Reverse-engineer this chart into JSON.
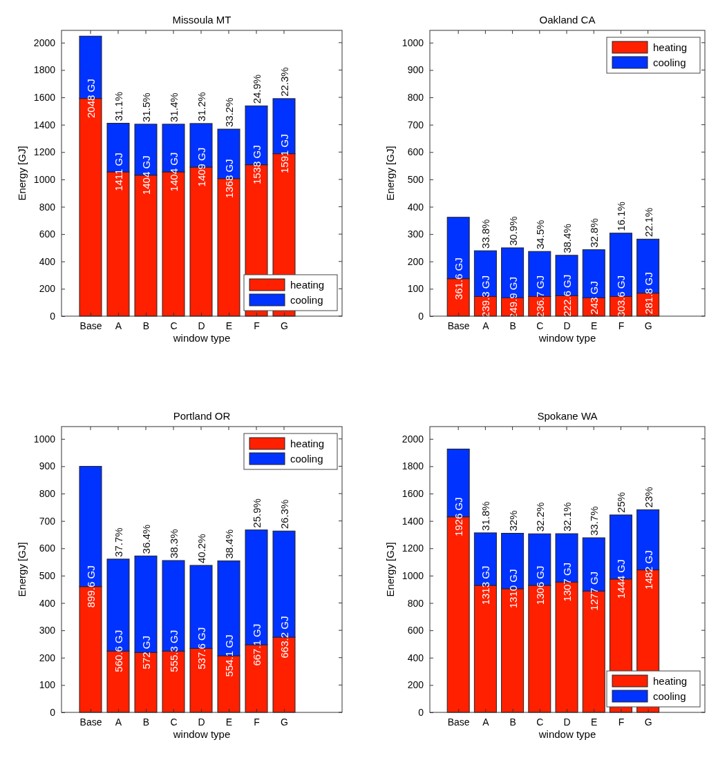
{
  "chart_data": [
    {
      "type": "bar",
      "stacked": true,
      "title": "Missoula MT",
      "xlabel": "window type",
      "ylabel": "Energy [GJ]",
      "categories": [
        "Base",
        "A",
        "B",
        "C",
        "D",
        "E",
        "F",
        "G"
      ],
      "series": [
        {
          "name": "heating",
          "color": "#ff2000",
          "values": [
            1592,
            1055,
            1031,
            1055,
            1090,
            1006,
            1107,
            1188
          ]
        },
        {
          "name": "cooling",
          "color": "#0033ff",
          "values": [
            456,
            356,
            373,
            349,
            319,
            362,
            431,
            403
          ]
        }
      ],
      "totals": [
        "2048 GJ",
        "1411 GJ",
        "1404 GJ",
        "1404 GJ",
        "1409 GJ",
        "1368 GJ",
        "1538 GJ",
        "1591 GJ"
      ],
      "annotations": [
        {
          "text": "31.1%",
          "x": "A",
          "y": 1411
        },
        {
          "text": "31.5%",
          "x": "B",
          "y": 1404
        },
        {
          "text": "31.4%",
          "x": "C",
          "y": 1404
        },
        {
          "text": "31.2%",
          "x": "D",
          "y": 1409
        },
        {
          "text": "33.2%",
          "x": "E",
          "y": 1368
        },
        {
          "text": "24.9%",
          "x": "F",
          "y": 1538
        },
        {
          "text": "22.3%",
          "x": "G",
          "y": 1591
        }
      ],
      "ylim": [
        0,
        2090
      ],
      "yticks": [
        0,
        200,
        400,
        600,
        800,
        1000,
        1200,
        1400,
        1600,
        1800,
        2000
      ],
      "legend": "bottom right",
      "grid": false
    },
    {
      "type": "bar",
      "stacked": true,
      "title": "Oakland CA",
      "xlabel": "window type",
      "ylabel": "Energy [GJ]",
      "categories": [
        "Base",
        "A",
        "B",
        "C",
        "D",
        "E",
        "F",
        "G"
      ],
      "series": [
        {
          "name": "heating",
          "color": "#ff2000",
          "values": [
            137,
            72,
            67,
            72,
            75,
            67,
            72,
            84
          ]
        },
        {
          "name": "cooling",
          "color": "#0033ff",
          "values": [
            224.6,
            167.3,
            182.9,
            164.7,
            147.6,
            176,
            231.6,
            197.8
          ]
        }
      ],
      "totals": [
        "361.6 GJ",
        "239.3 GJ",
        "249.9 GJ",
        "236.7 GJ",
        "222.6 GJ",
        "243 GJ",
        "303.6 GJ",
        "281.8 GJ"
      ],
      "annotations": [
        {
          "text": "33.8%",
          "x": "A",
          "y": 239.3
        },
        {
          "text": "30.9%",
          "x": "B",
          "y": 249.9
        },
        {
          "text": "34.5%",
          "x": "C",
          "y": 236.7
        },
        {
          "text": "38.4%",
          "x": "D",
          "y": 222.6
        },
        {
          "text": "32.8%",
          "x": "E",
          "y": 243
        },
        {
          "text": "16.1%",
          "x": "F",
          "y": 303.6
        },
        {
          "text": "22.1%",
          "x": "G",
          "y": 281.8
        }
      ],
      "ylim": [
        0,
        1045
      ],
      "yticks": [
        0,
        100,
        200,
        300,
        400,
        500,
        600,
        700,
        800,
        900,
        1000
      ],
      "legend": "top right",
      "grid": false
    },
    {
      "type": "bar",
      "stacked": true,
      "title": "Portland OR",
      "xlabel": "window type",
      "ylabel": "Energy [GJ]",
      "categories": [
        "Base",
        "A",
        "B",
        "C",
        "D",
        "E",
        "F",
        "G"
      ],
      "series": [
        {
          "name": "heating",
          "color": "#ff2000",
          "values": [
            460,
            224,
            219,
            224,
            234,
            207,
            247,
            275
          ]
        },
        {
          "name": "cooling",
          "color": "#0033ff",
          "values": [
            439.6,
            336.6,
            353,
            331.3,
            303.6,
            347.1,
            420.1,
            388.2
          ]
        }
      ],
      "totals": [
        "899.6 GJ",
        "560.6 GJ",
        "572 GJ",
        "555.3 GJ",
        "537.6 GJ",
        "554.1 GJ",
        "667.1 GJ",
        "663.2 GJ"
      ],
      "annotations": [
        {
          "text": "37.7%",
          "x": "A",
          "y": 560.6
        },
        {
          "text": "36.4%",
          "x": "B",
          "y": 572
        },
        {
          "text": "38.3%",
          "x": "C",
          "y": 555.3
        },
        {
          "text": "40.2%",
          "x": "D",
          "y": 537.6
        },
        {
          "text": "38.4%",
          "x": "E",
          "y": 554.1
        },
        {
          "text": "25.9%",
          "x": "F",
          "y": 667.1
        },
        {
          "text": "26.3%",
          "x": "G",
          "y": 663.2
        }
      ],
      "ylim": [
        0,
        1045
      ],
      "yticks": [
        0,
        100,
        200,
        300,
        400,
        500,
        600,
        700,
        800,
        900,
        1000
      ],
      "legend": "top right",
      "grid": false
    },
    {
      "type": "bar",
      "stacked": true,
      "title": "Spokane WA",
      "xlabel": "window type",
      "ylabel": "Energy [GJ]",
      "categories": [
        "Base",
        "A",
        "B",
        "C",
        "D",
        "E",
        "F",
        "G"
      ],
      "series": [
        {
          "name": "heating",
          "color": "#ff2000",
          "values": [
            1430,
            929,
            904,
            929,
            953,
            887,
            975,
            1042
          ]
        },
        {
          "name": "cooling",
          "color": "#0033ff",
          "values": [
            496,
            384,
            406,
            377,
            354,
            390,
            469,
            440
          ]
        }
      ],
      "totals": [
        "1926 GJ",
        "1313 GJ",
        "1310 GJ",
        "1306 GJ",
        "1307 GJ",
        "1277 GJ",
        "1444 GJ",
        "1482 GJ"
      ],
      "annotations": [
        {
          "text": "31.8%",
          "x": "A",
          "y": 1313
        },
        {
          "text": "32%",
          "x": "B",
          "y": 1310
        },
        {
          "text": "32.2%",
          "x": "C",
          "y": 1306
        },
        {
          "text": "32.1%",
          "x": "D",
          "y": 1307
        },
        {
          "text": "33.7%",
          "x": "E",
          "y": 1277
        },
        {
          "text": "25%",
          "x": "F",
          "y": 1444
        },
        {
          "text": "23%",
          "x": "G",
          "y": 1482
        }
      ],
      "ylim": [
        0,
        2090
      ],
      "yticks": [
        0,
        200,
        400,
        600,
        800,
        1000,
        1200,
        1400,
        1600,
        1800,
        2000
      ],
      "legend": "bottom right",
      "grid": false
    }
  ]
}
